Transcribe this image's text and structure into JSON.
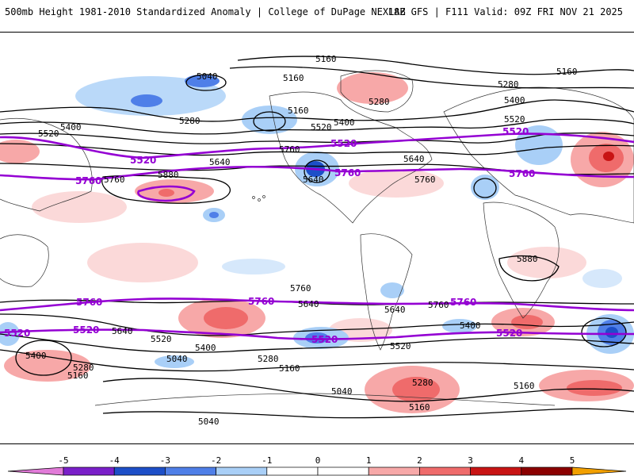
{
  "header": {
    "title": "500mb Height 1981-2010 Standardized Anomaly | College of DuPage NEXLAB",
    "run_info": "18Z GFS | F111 Valid: 09Z FRI NOV 21 2025"
  },
  "colors": {
    "contour": "#000000",
    "highlight_contour": "#9400d3",
    "coast": "#333333",
    "anom_neg5": "#e17bd8",
    "anom_neg4": "#7a1fc9",
    "anom_neg3": "#1d4fc8",
    "anom_neg2": "#4f7fe8",
    "anom_neg1": "#a9cff7",
    "anom_neg_light": "#d6e8fb",
    "anom_pos_light": "#fbd9d9",
    "anom_pos1": "#f7a8a8",
    "anom_pos2": "#ef6b6b",
    "anom_pos3": "#c81414",
    "anom_pos4": "#8b0000",
    "anom_pos5": "#f2a000"
  },
  "colorbar": {
    "ticks": [
      "-5",
      "-4",
      "-3",
      "-2",
      "-1",
      "0",
      "1",
      "2",
      "3",
      "4",
      "5"
    ],
    "colors": [
      "#e17bd8",
      "#7a1fc9",
      "#1d4fc8",
      "#4f7fe8",
      "#a9cff7",
      "#ffffff",
      "#ffffff",
      "#f7a8a8",
      "#ef6b6b",
      "#c81414",
      "#8b0000",
      "#f2a000"
    ]
  },
  "contour_labels": {
    "l5160a": "5160",
    "l5160b": "5160",
    "l5160c": "5160",
    "l5160d": "5160",
    "l5040": "5040",
    "l5280a": "5280",
    "l5280b": "5280",
    "l5280c": "5280",
    "l5400a": "5400",
    "l5400b": "5400",
    "l5400c": "5400",
    "l5520a": "5520",
    "l5520b": "5520",
    "l5520c": "5520",
    "l5640a": "5640",
    "l5640b": "5640",
    "l5640c": "5640",
    "l5760a": "5760",
    "l5760b": "5760",
    "l5760c": "5760",
    "l5880a": "5880",
    "l5880b": "5880",
    "p5520a": "5520",
    "p5520b": "5520",
    "p5520c": "5520",
    "p5520d": "5520",
    "p5760a": "5760",
    "p5760b": "5760",
    "p5760c": "5760",
    "s5760a": "5760",
    "s5640a": "5640",
    "s5760b": "5760",
    "s5760c": "5760",
    "s5640b": "5640",
    "s5640c": "5640",
    "s5520a": "5520",
    "s5400a": "5400",
    "s5400b": "5400",
    "s5280a": "5280",
    "s5280b": "5280",
    "s5280c": "5280",
    "s5160a": "5160",
    "s5160b": "5160",
    "s5160c": "5160",
    "s5160d": "5160",
    "s5040a": "5040",
    "s5040b": "5040",
    "s5040c": "5040",
    "s5400c": "5400",
    "s5520b": "5520",
    "sp5760a": "5760",
    "sp5760b": "5760",
    "sp5760c": "5760",
    "sp5520a": "5520",
    "sp5520b": "5520",
    "sp5520c": "5520"
  }
}
